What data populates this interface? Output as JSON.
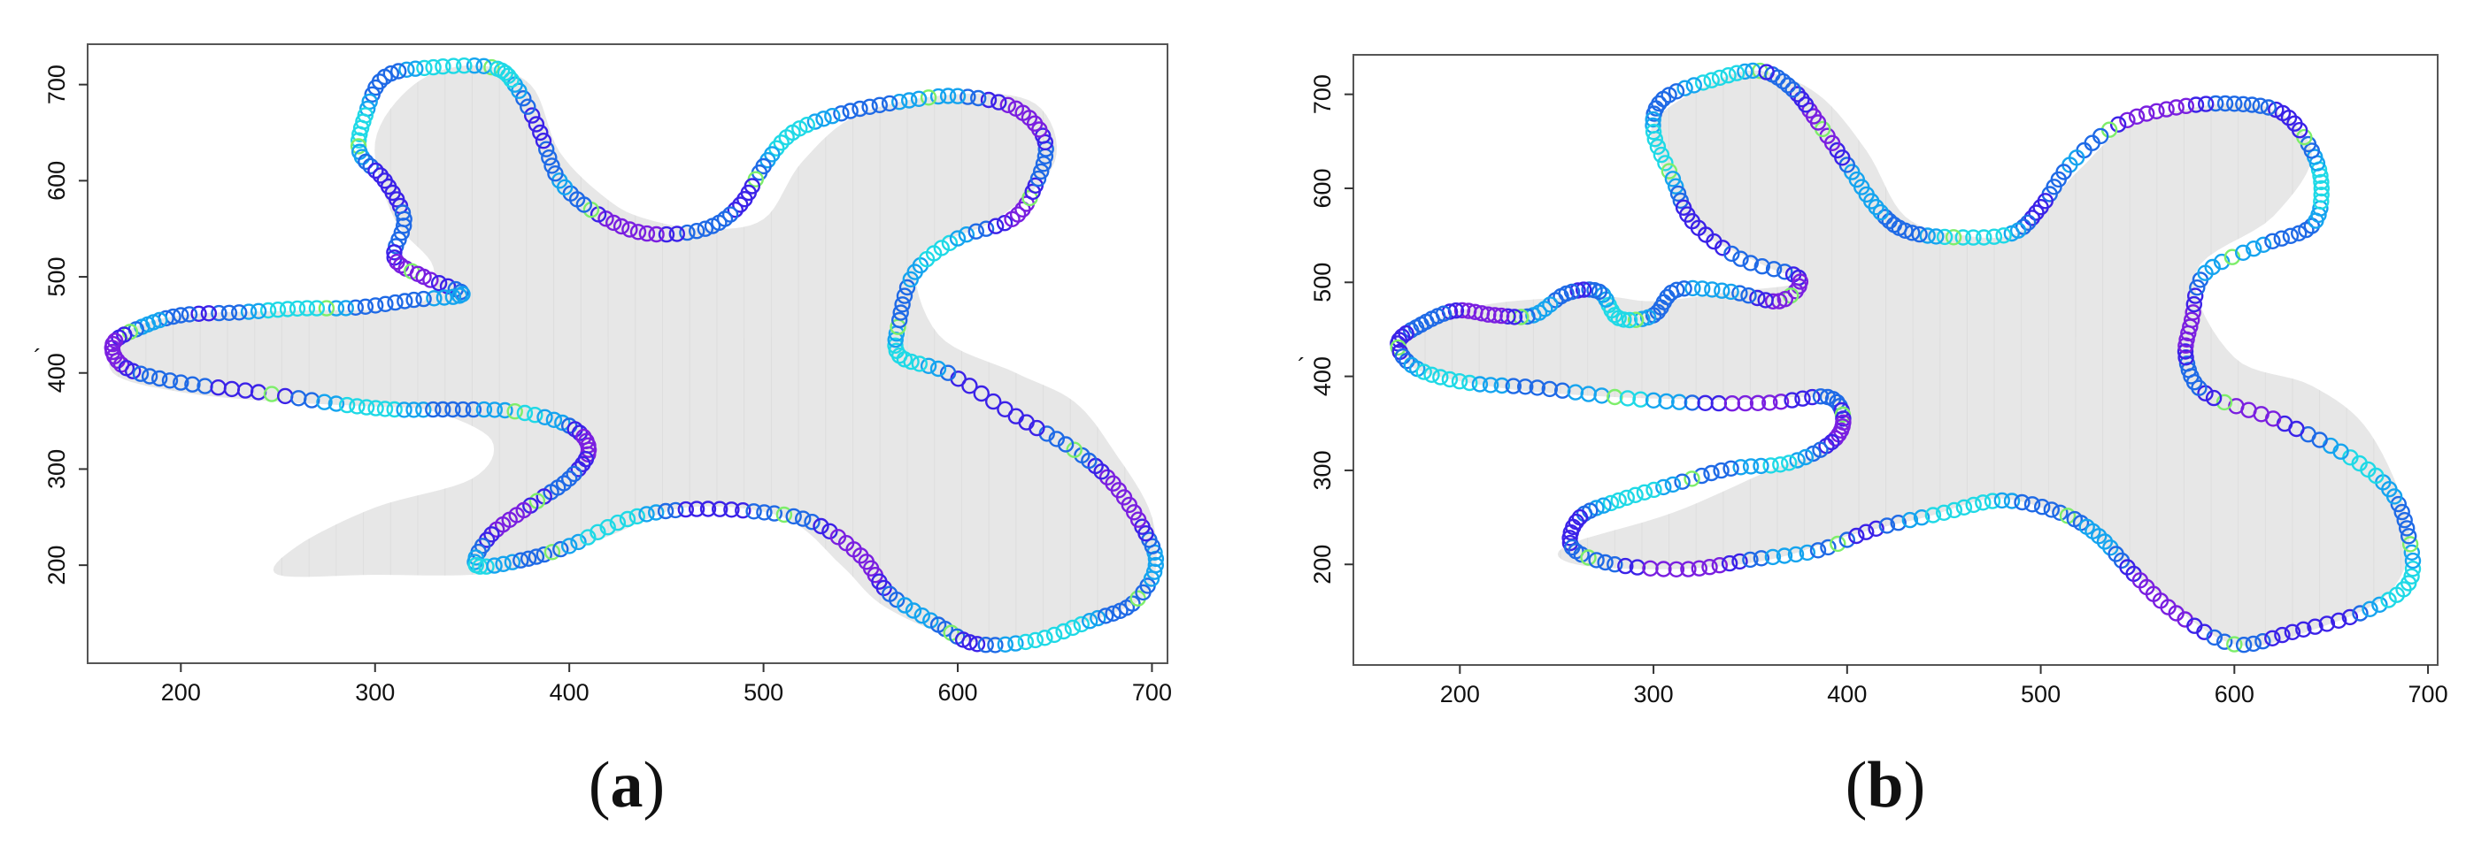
{
  "chart_data": [
    {
      "type": "scatter",
      "panel": "a",
      "caption_letter": "a",
      "caption_open": "(",
      "caption_close": ")",
      "ylabel": "´",
      "xlim": [
        152,
        708
      ],
      "ylim": [
        98,
        742
      ],
      "x_ticks": [
        200,
        300,
        400,
        500,
        600,
        700
      ],
      "y_ticks": [
        200,
        300,
        400,
        500,
        600,
        700
      ],
      "grid": false,
      "colors": {
        "fill": "#e7e7e7",
        "stripe": "#cdcdcd",
        "palette": [
          "#7a1fe0",
          "#3b22e8",
          "#1f6ae6",
          "#15a4ef",
          "#1fd9e6",
          "#7dee6a"
        ]
      },
      "shape_outline": [
        [
          350,
          720
        ],
        [
          380,
          700
        ],
        [
          395,
          630
        ],
        [
          420,
          580
        ],
        [
          440,
          560
        ],
        [
          470,
          550
        ],
        [
          500,
          560
        ],
        [
          520,
          620
        ],
        [
          550,
          670
        ],
        [
          600,
          690
        ],
        [
          640,
          680
        ],
        [
          650,
          620
        ],
        [
          620,
          560
        ],
        [
          580,
          520
        ],
        [
          590,
          440
        ],
        [
          630,
          400
        ],
        [
          660,
          370
        ],
        [
          680,
          320
        ],
        [
          700,
          250
        ],
        [
          700,
          180
        ],
        [
          680,
          150
        ],
        [
          640,
          130
        ],
        [
          610,
          120
        ],
        [
          590,
          130
        ],
        [
          560,
          160
        ],
        [
          540,
          200
        ],
        [
          510,
          250
        ],
        [
          460,
          260
        ],
        [
          420,
          230
        ],
        [
          380,
          200
        ],
        [
          350,
          190
        ],
        [
          300,
          190
        ],
        [
          250,
          190
        ],
        [
          260,
          220
        ],
        [
          300,
          260
        ],
        [
          350,
          290
        ],
        [
          360,
          330
        ],
        [
          330,
          360
        ],
        [
          300,
          365
        ],
        [
          250,
          370
        ],
        [
          200,
          380
        ],
        [
          165,
          400
        ],
        [
          170,
          440
        ],
        [
          200,
          460
        ],
        [
          260,
          465
        ],
        [
          320,
          470
        ],
        [
          330,
          510
        ],
        [
          310,
          560
        ],
        [
          300,
          640
        ],
        [
          320,
          700
        ]
      ],
      "series": [
        {
          "points": [
            [
              360,
              718
            ],
            [
              330,
              718
            ],
            [
              305,
              708
            ],
            [
              295,
              668
            ],
            [
              292,
              630
            ],
            [
              305,
              600
            ],
            [
              315,
              560
            ],
            [
              310,
              520
            ],
            [
              325,
              500
            ],
            [
              345,
              482
            ],
            [
              320,
              476
            ],
            [
              290,
              468
            ],
            [
              260,
              467
            ],
            [
              230,
              463
            ],
            [
              200,
              460
            ],
            [
              180,
              448
            ],
            [
              165,
              430
            ],
            [
              172,
              405
            ],
            [
              200,
              390
            ],
            [
              240,
              380
            ],
            [
              280,
              368
            ],
            [
              310,
              362
            ],
            [
              340,
              362
            ],
            [
              372,
              360
            ],
            [
              400,
              345
            ],
            [
              410,
              320
            ],
            [
              400,
              290
            ],
            [
              380,
              262
            ],
            [
              360,
              232
            ],
            [
              352,
              200
            ],
            [
              375,
              205
            ],
            [
              400,
              220
            ],
            [
              430,
              248
            ],
            [
              460,
              258
            ],
            [
              495,
              256
            ],
            [
              525,
              245
            ],
            [
              550,
              210
            ],
            [
              565,
              170
            ],
            [
              590,
              138
            ],
            [
              610,
              118
            ],
            [
              640,
              122
            ],
            [
              668,
              142
            ],
            [
              690,
              160
            ],
            [
              702,
              200
            ],
            [
              695,
              240
            ],
            [
              680,
              285
            ],
            [
              660,
              320
            ],
            [
              630,
              355
            ],
            [
              595,
              400
            ],
            [
              570,
              418
            ],
            [
              570,
              455
            ],
            [
              578,
              505
            ],
            [
              600,
              540
            ],
            [
              628,
              560
            ],
            [
              640,
              595
            ],
            [
              645,
              640
            ],
            [
              630,
              675
            ],
            [
              600,
              688
            ],
            [
              570,
              682
            ],
            [
              540,
              670
            ],
            [
              515,
              650
            ],
            [
              500,
              615
            ],
            [
              488,
              575
            ],
            [
              470,
              550
            ],
            [
              440,
              545
            ],
            [
              415,
              565
            ],
            [
              395,
              600
            ],
            [
              385,
              650
            ],
            [
              372,
              700
            ]
          ]
        }
      ]
    },
    {
      "type": "scatter",
      "panel": "b",
      "caption_letter": "b",
      "caption_open": "(",
      "caption_close": ")",
      "ylabel": "´",
      "xlim": [
        145,
        705
      ],
      "ylim": [
        93,
        742
      ],
      "x_ticks": [
        200,
        300,
        400,
        500,
        600,
        700
      ],
      "y_ticks": [
        200,
        300,
        400,
        500,
        600,
        700
      ],
      "grid": false,
      "colors": {
        "fill": "#e7e7e7",
        "stripe": "#cdcdcd",
        "palette": [
          "#7a1fe0",
          "#3b22e8",
          "#1f6ae6",
          "#15a4ef",
          "#1fd9e6",
          "#7dee6a"
        ]
      },
      "shape_outline": [
        [
          355,
          725
        ],
        [
          385,
          700
        ],
        [
          410,
          640
        ],
        [
          430,
          570
        ],
        [
          460,
          550
        ],
        [
          490,
          555
        ],
        [
          520,
          620
        ],
        [
          550,
          670
        ],
        [
          610,
          690
        ],
        [
          640,
          640
        ],
        [
          620,
          570
        ],
        [
          580,
          510
        ],
        [
          600,
          420
        ],
        [
          640,
          390
        ],
        [
          670,
          340
        ],
        [
          690,
          240
        ],
        [
          680,
          170
        ],
        [
          640,
          130
        ],
        [
          600,
          115
        ],
        [
          560,
          170
        ],
        [
          520,
          240
        ],
        [
          480,
          270
        ],
        [
          440,
          250
        ],
        [
          400,
          230
        ],
        [
          360,
          205
        ],
        [
          310,
          195
        ],
        [
          260,
          200
        ],
        [
          255,
          220
        ],
        [
          310,
          255
        ],
        [
          360,
          300
        ],
        [
          395,
          330
        ],
        [
          390,
          375
        ],
        [
          340,
          375
        ],
        [
          280,
          378
        ],
        [
          220,
          388
        ],
        [
          175,
          410
        ],
        [
          175,
          445
        ],
        [
          210,
          475
        ],
        [
          270,
          485
        ],
        [
          300,
          480
        ],
        [
          340,
          490
        ],
        [
          375,
          500
        ],
        [
          355,
          520
        ],
        [
          320,
          560
        ],
        [
          305,
          620
        ],
        [
          300,
          670
        ],
        [
          330,
          712
        ]
      ],
      "series": [
        {
          "points": [
            [
              355,
              725
            ],
            [
              330,
              715
            ],
            [
              305,
              695
            ],
            [
              300,
              660
            ],
            [
              310,
              610
            ],
            [
              320,
              565
            ],
            [
              345,
              525
            ],
            [
              375,
              505
            ],
            [
              365,
              480
            ],
            [
              340,
              490
            ],
            [
              312,
              492
            ],
            [
              300,
              465
            ],
            [
              282,
              462
            ],
            [
              272,
              490
            ],
            [
              255,
              488
            ],
            [
              238,
              465
            ],
            [
              218,
              465
            ],
            [
              198,
              470
            ],
            [
              180,
              455
            ],
            [
              168,
              435
            ],
            [
              178,
              408
            ],
            [
              205,
              393
            ],
            [
              240,
              388
            ],
            [
              280,
              378
            ],
            [
              320,
              372
            ],
            [
              360,
              372
            ],
            [
              390,
              378
            ],
            [
              398,
              355
            ],
            [
              392,
              330
            ],
            [
              370,
              308
            ],
            [
              340,
              302
            ],
            [
              310,
              285
            ],
            [
              282,
              268
            ],
            [
              262,
              250
            ],
            [
              258,
              218
            ],
            [
              280,
              200
            ],
            [
              318,
              195
            ],
            [
              350,
              205
            ],
            [
              385,
              215
            ],
            [
              415,
              238
            ],
            [
              450,
              255
            ],
            [
              480,
              268
            ],
            [
              510,
              255
            ],
            [
              530,
              230
            ],
            [
              548,
              190
            ],
            [
              570,
              148
            ],
            [
              600,
              115
            ],
            [
              630,
              128
            ],
            [
              665,
              148
            ],
            [
              690,
              180
            ],
            [
              690,
              230
            ],
            [
              680,
              280
            ],
            [
              655,
              320
            ],
            [
              620,
              355
            ],
            [
              585,
              382
            ],
            [
              575,
              420
            ],
            [
              578,
              460
            ],
            [
              585,
              510
            ],
            [
              615,
              540
            ],
            [
              640,
              560
            ],
            [
              645,
              600
            ],
            [
              640,
              640
            ],
            [
              625,
              680
            ],
            [
              600,
              690
            ],
            [
              570,
              686
            ],
            [
              540,
              668
            ],
            [
              515,
              625
            ],
            [
              500,
              580
            ],
            [
              485,
              552
            ],
            [
              455,
              548
            ],
            [
              430,
              555
            ],
            [
              415,
              580
            ],
            [
              400,
              625
            ],
            [
              385,
              670
            ],
            [
              372,
              705
            ]
          ]
        }
      ]
    }
  ]
}
